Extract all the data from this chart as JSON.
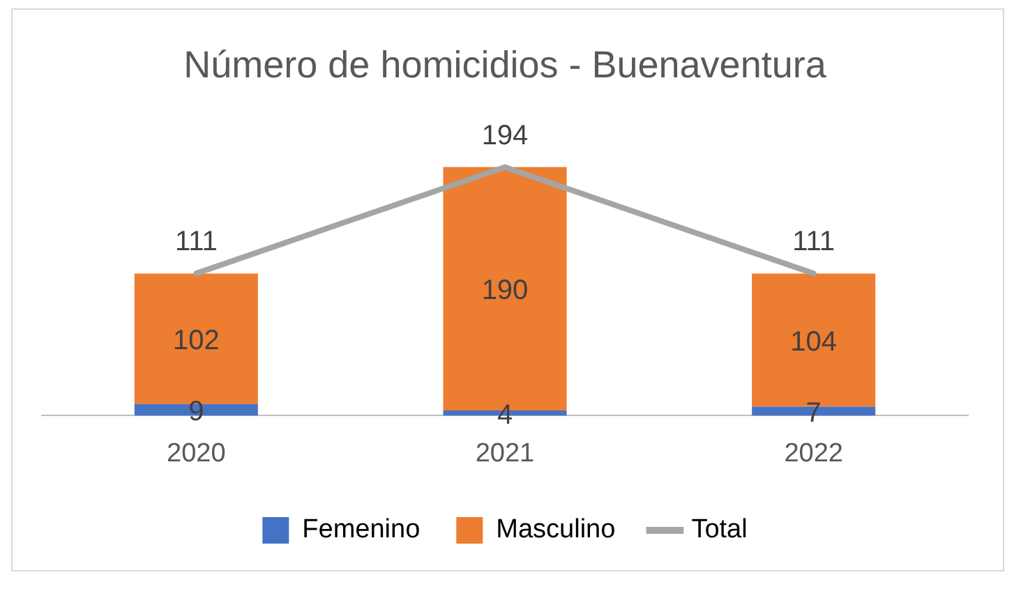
{
  "chart_data": {
    "type": "bar",
    "title": "Número de homicidios - Buenaventura",
    "categories": [
      "2020",
      "2021",
      "2022"
    ],
    "stacked": true,
    "data_labels": true,
    "legend": "bottom",
    "grid": false,
    "tick_labels": "x",
    "series": [
      {
        "name": "Femenino",
        "color": "#4472c4",
        "values": [
          9,
          4,
          7
        ]
      },
      {
        "name": "Masculino",
        "color": "#ed7d31",
        "values": [
          102,
          190,
          104
        ]
      },
      {
        "name": "Total",
        "type": "line",
        "color": "#a5a5a5",
        "marker": "none",
        "values": [
          111,
          194,
          111
        ]
      }
    ]
  }
}
